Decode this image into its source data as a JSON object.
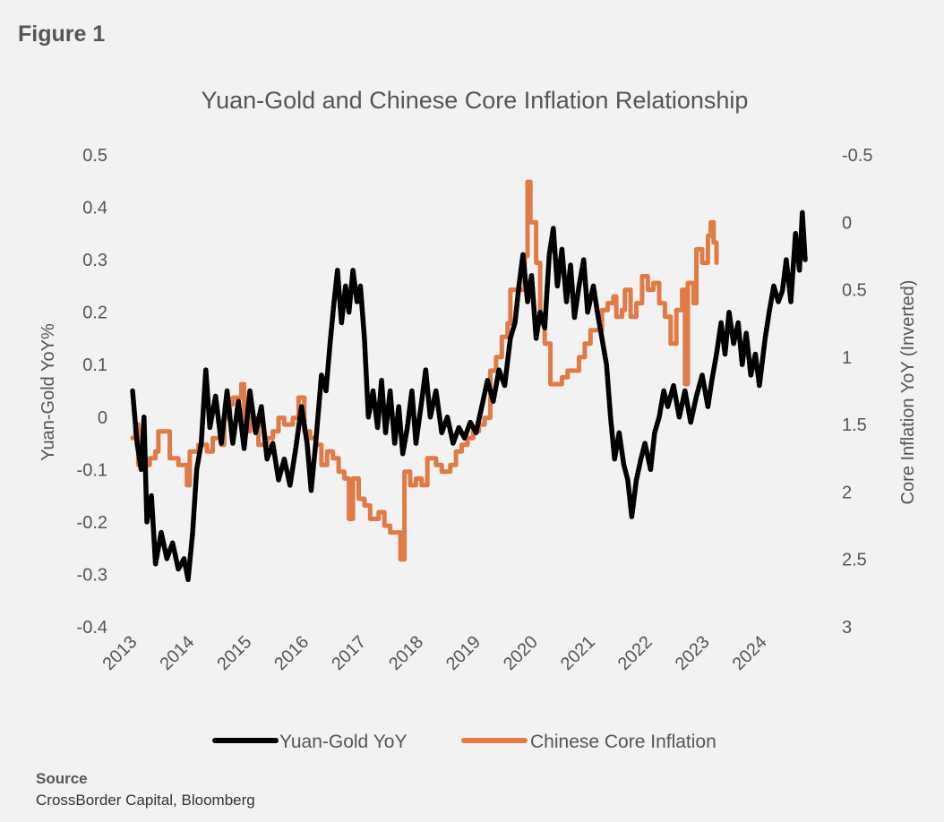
{
  "figure_label": "Figure 1",
  "source": {
    "heading": "Source",
    "text": "CrossBorder Capital, Bloomberg"
  },
  "colors": {
    "yuan_gold": "#000000",
    "core_inflation": "#e07b47",
    "axis_text": "#555555",
    "background": "#f2f2f2"
  },
  "chart_data": {
    "type": "line",
    "title": "Yuan-Gold and Chinese Core Inflation Relationship",
    "xlabel": "",
    "ylabel": "Yuan-Gold YoY%",
    "y2label": "Core Inflation YoY (Inverted)",
    "ylim": [
      -0.4,
      0.5
    ],
    "y2lim": [
      3,
      -0.5
    ],
    "y2_inverted": true,
    "xlim": [
      2013,
      2025
    ],
    "y_ticks": [
      "0.5",
      "0.4",
      "0.3",
      "0.2",
      "0.1",
      "0",
      "-0.1",
      "-0.2",
      "-0.3",
      "-0.4"
    ],
    "y2_ticks": [
      "-0.5",
      "0",
      "0.5",
      "1",
      "1.5",
      "2",
      "2.5",
      "3"
    ],
    "x_ticks": [
      "2013",
      "2014",
      "2015",
      "2016",
      "2017",
      "2018",
      "2019",
      "2020",
      "2021",
      "2022",
      "2023",
      "2024"
    ],
    "legend": {
      "position": "bottom"
    },
    "grid": false,
    "series": [
      {
        "name": "Yuan-Gold YoY",
        "axis": "left",
        "points": [
          [
            2013.0,
            0.05
          ],
          [
            2013.08,
            -0.05
          ],
          [
            2013.15,
            -0.1
          ],
          [
            2013.2,
            0.0
          ],
          [
            2013.25,
            -0.2
          ],
          [
            2013.33,
            -0.15
          ],
          [
            2013.4,
            -0.28
          ],
          [
            2013.5,
            -0.22
          ],
          [
            2013.6,
            -0.27
          ],
          [
            2013.7,
            -0.24
          ],
          [
            2013.8,
            -0.29
          ],
          [
            2013.9,
            -0.27
          ],
          [
            2013.97,
            -0.31
          ],
          [
            2014.05,
            -0.22
          ],
          [
            2014.12,
            -0.1
          ],
          [
            2014.2,
            -0.05
          ],
          [
            2014.28,
            0.09
          ],
          [
            2014.35,
            -0.02
          ],
          [
            2014.45,
            0.04
          ],
          [
            2014.55,
            -0.05
          ],
          [
            2014.65,
            0.05
          ],
          [
            2014.75,
            -0.05
          ],
          [
            2014.85,
            0.03
          ],
          [
            2014.95,
            -0.06
          ],
          [
            2015.05,
            0.05
          ],
          [
            2015.15,
            -0.03
          ],
          [
            2015.25,
            0.02
          ],
          [
            2015.35,
            -0.08
          ],
          [
            2015.45,
            -0.05
          ],
          [
            2015.55,
            -0.12
          ],
          [
            2015.65,
            -0.08
          ],
          [
            2015.75,
            -0.13
          ],
          [
            2015.85,
            -0.06
          ],
          [
            2015.95,
            0.02
          ],
          [
            2016.05,
            -0.05
          ],
          [
            2016.12,
            -0.14
          ],
          [
            2016.2,
            -0.05
          ],
          [
            2016.3,
            0.08
          ],
          [
            2016.38,
            0.05
          ],
          [
            2016.45,
            0.14
          ],
          [
            2016.52,
            0.22
          ],
          [
            2016.58,
            0.28
          ],
          [
            2016.65,
            0.18
          ],
          [
            2016.72,
            0.25
          ],
          [
            2016.78,
            0.2
          ],
          [
            2016.85,
            0.28
          ],
          [
            2016.92,
            0.22
          ],
          [
            2016.98,
            0.25
          ],
          [
            2017.05,
            0.15
          ],
          [
            2017.12,
            0.0
          ],
          [
            2017.2,
            0.05
          ],
          [
            2017.28,
            -0.02
          ],
          [
            2017.35,
            0.07
          ],
          [
            2017.42,
            -0.03
          ],
          [
            2017.5,
            0.05
          ],
          [
            2017.58,
            -0.05
          ],
          [
            2017.65,
            0.02
          ],
          [
            2017.72,
            -0.07
          ],
          [
            2017.8,
            -0.02
          ],
          [
            2017.88,
            0.05
          ],
          [
            2017.95,
            -0.05
          ],
          [
            2018.05,
            0.03
          ],
          [
            2018.12,
            0.09
          ],
          [
            2018.2,
            0.0
          ],
          [
            2018.3,
            0.05
          ],
          [
            2018.4,
            -0.03
          ],
          [
            2018.5,
            0.0
          ],
          [
            2018.6,
            -0.05
          ],
          [
            2018.7,
            -0.02
          ],
          [
            2018.8,
            -0.04
          ],
          [
            2018.9,
            -0.01
          ],
          [
            2019.0,
            -0.03
          ],
          [
            2019.1,
            0.02
          ],
          [
            2019.2,
            0.07
          ],
          [
            2019.3,
            0.03
          ],
          [
            2019.4,
            0.09
          ],
          [
            2019.5,
            0.06
          ],
          [
            2019.6,
            0.15
          ],
          [
            2019.68,
            0.18
          ],
          [
            2019.75,
            0.25
          ],
          [
            2019.82,
            0.31
          ],
          [
            2019.9,
            0.22
          ],
          [
            2019.97,
            0.27
          ],
          [
            2020.05,
            0.15
          ],
          [
            2020.12,
            0.2
          ],
          [
            2020.2,
            0.17
          ],
          [
            2020.28,
            0.31
          ],
          [
            2020.35,
            0.36
          ],
          [
            2020.42,
            0.25
          ],
          [
            2020.5,
            0.32
          ],
          [
            2020.58,
            0.22
          ],
          [
            2020.65,
            0.29
          ],
          [
            2020.72,
            0.19
          ],
          [
            2020.8,
            0.25
          ],
          [
            2020.88,
            0.3
          ],
          [
            2020.95,
            0.2
          ],
          [
            2021.05,
            0.25
          ],
          [
            2021.12,
            0.2
          ],
          [
            2021.2,
            0.15
          ],
          [
            2021.28,
            0.1
          ],
          [
            2021.35,
            0.0
          ],
          [
            2021.42,
            -0.08
          ],
          [
            2021.5,
            -0.03
          ],
          [
            2021.58,
            -0.09
          ],
          [
            2021.65,
            -0.12
          ],
          [
            2021.72,
            -0.19
          ],
          [
            2021.8,
            -0.12
          ],
          [
            2021.88,
            -0.08
          ],
          [
            2021.95,
            -0.05
          ],
          [
            2022.05,
            -0.1
          ],
          [
            2022.12,
            -0.03
          ],
          [
            2022.2,
            0.0
          ],
          [
            2022.28,
            0.05
          ],
          [
            2022.35,
            0.02
          ],
          [
            2022.45,
            0.06
          ],
          [
            2022.55,
            0.0
          ],
          [
            2022.65,
            0.05
          ],
          [
            2022.75,
            -0.01
          ],
          [
            2022.85,
            0.04
          ],
          [
            2022.95,
            0.08
          ],
          [
            2023.05,
            0.02
          ],
          [
            2023.12,
            0.07
          ],
          [
            2023.2,
            0.12
          ],
          [
            2023.28,
            0.18
          ],
          [
            2023.35,
            0.12
          ],
          [
            2023.42,
            0.2
          ],
          [
            2023.5,
            0.14
          ],
          [
            2023.58,
            0.18
          ],
          [
            2023.65,
            0.1
          ],
          [
            2023.72,
            0.16
          ],
          [
            2023.8,
            0.08
          ],
          [
            2023.88,
            0.12
          ],
          [
            2023.95,
            0.06
          ],
          [
            2024.05,
            0.15
          ],
          [
            2024.12,
            0.2
          ],
          [
            2024.2,
            0.25
          ],
          [
            2024.28,
            0.22
          ],
          [
            2024.35,
            0.24
          ],
          [
            2024.42,
            0.3
          ],
          [
            2024.5,
            0.22
          ],
          [
            2024.58,
            0.35
          ],
          [
            2024.65,
            0.28
          ],
          [
            2024.7,
            0.39
          ],
          [
            2024.75,
            0.3
          ]
        ]
      },
      {
        "name": "Chinese Core Inflation",
        "axis": "right",
        "points": [
          [
            2013.0,
            1.6
          ],
          [
            2013.05,
            1.5
          ],
          [
            2013.1,
            1.8
          ],
          [
            2013.25,
            1.8
          ],
          [
            2013.3,
            1.75
          ],
          [
            2013.4,
            1.7
          ],
          [
            2013.45,
            1.55
          ],
          [
            2013.6,
            1.55
          ],
          [
            2013.65,
            1.75
          ],
          [
            2013.8,
            1.8
          ],
          [
            2013.9,
            1.8
          ],
          [
            2013.95,
            1.95
          ],
          [
            2014.0,
            1.7
          ],
          [
            2014.15,
            1.65
          ],
          [
            2014.3,
            1.7
          ],
          [
            2014.4,
            1.6
          ],
          [
            2014.55,
            1.65
          ],
          [
            2014.6,
            1.45
          ],
          [
            2014.7,
            1.35
          ],
          [
            2014.75,
            1.3
          ],
          [
            2014.85,
            1.3
          ],
          [
            2014.9,
            1.2
          ],
          [
            2014.95,
            1.55
          ],
          [
            2015.05,
            1.45
          ],
          [
            2015.2,
            1.65
          ],
          [
            2015.35,
            1.6
          ],
          [
            2015.45,
            1.55
          ],
          [
            2015.55,
            1.45
          ],
          [
            2015.65,
            1.5
          ],
          [
            2015.8,
            1.45
          ],
          [
            2015.9,
            1.3
          ],
          [
            2016.0,
            1.55
          ],
          [
            2016.1,
            1.6
          ],
          [
            2016.2,
            1.65
          ],
          [
            2016.3,
            1.8
          ],
          [
            2016.4,
            1.7
          ],
          [
            2016.5,
            1.75
          ],
          [
            2016.6,
            1.85
          ],
          [
            2016.7,
            1.9
          ],
          [
            2016.78,
            2.2
          ],
          [
            2016.85,
            1.9
          ],
          [
            2016.95,
            2.05
          ],
          [
            2017.05,
            2.1
          ],
          [
            2017.15,
            2.2
          ],
          [
            2017.3,
            2.15
          ],
          [
            2017.4,
            2.25
          ],
          [
            2017.5,
            2.3
          ],
          [
            2017.6,
            2.3
          ],
          [
            2017.68,
            2.5
          ],
          [
            2017.75,
            1.85
          ],
          [
            2017.85,
            1.95
          ],
          [
            2017.95,
            1.9
          ],
          [
            2018.05,
            1.95
          ],
          [
            2018.15,
            1.75
          ],
          [
            2018.3,
            1.8
          ],
          [
            2018.4,
            1.85
          ],
          [
            2018.55,
            1.8
          ],
          [
            2018.65,
            1.7
          ],
          [
            2018.75,
            1.65
          ],
          [
            2018.85,
            1.6
          ],
          [
            2018.95,
            1.55
          ],
          [
            2019.05,
            1.5
          ],
          [
            2019.15,
            1.45
          ],
          [
            2019.25,
            1.1
          ],
          [
            2019.35,
            1.0
          ],
          [
            2019.45,
            0.85
          ],
          [
            2019.55,
            0.75
          ],
          [
            2019.6,
            0.5
          ],
          [
            2019.7,
            0.5
          ],
          [
            2019.8,
            0.5
          ],
          [
            2019.85,
            0.25
          ],
          [
            2019.9,
            -0.3
          ],
          [
            2019.95,
            0.0
          ],
          [
            2020.05,
            0.3
          ],
          [
            2020.12,
            0.7
          ],
          [
            2020.2,
            0.9
          ],
          [
            2020.3,
            1.2
          ],
          [
            2020.4,
            1.2
          ],
          [
            2020.5,
            1.15
          ],
          [
            2020.6,
            1.1
          ],
          [
            2020.7,
            1.1
          ],
          [
            2020.8,
            1.0
          ],
          [
            2020.9,
            0.9
          ],
          [
            2021.0,
            0.8
          ],
          [
            2021.1,
            0.8
          ],
          [
            2021.2,
            0.65
          ],
          [
            2021.3,
            0.6
          ],
          [
            2021.4,
            0.55
          ],
          [
            2021.45,
            0.7
          ],
          [
            2021.55,
            0.65
          ],
          [
            2021.6,
            0.5
          ],
          [
            2021.7,
            0.7
          ],
          [
            2021.8,
            0.6
          ],
          [
            2021.9,
            0.4
          ],
          [
            2022.0,
            0.5
          ],
          [
            2022.1,
            0.45
          ],
          [
            2022.2,
            0.6
          ],
          [
            2022.3,
            0.7
          ],
          [
            2022.4,
            0.9
          ],
          [
            2022.5,
            0.65
          ],
          [
            2022.6,
            0.5
          ],
          [
            2022.65,
            1.2
          ],
          [
            2022.7,
            0.45
          ],
          [
            2022.8,
            0.6
          ],
          [
            2022.85,
            0.2
          ],
          [
            2022.95,
            0.3
          ],
          [
            2023.05,
            0.1
          ],
          [
            2023.1,
            0.0
          ],
          [
            2023.15,
            0.15
          ],
          [
            2023.2,
            0.3
          ]
        ]
      }
    ]
  }
}
